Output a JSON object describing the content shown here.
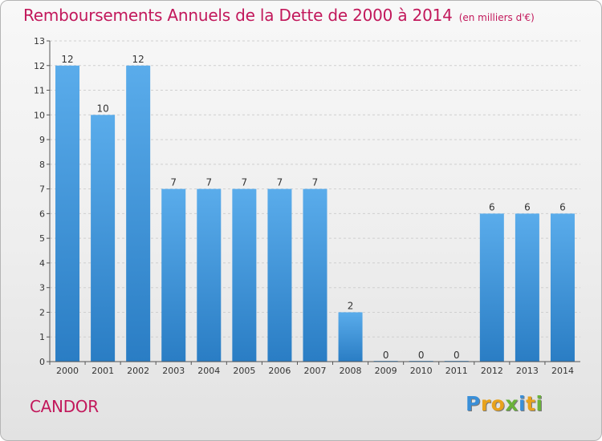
{
  "title": "Remboursements Annuels de la Dette de 2000 à 2014",
  "unit": "(en milliers d'€)",
  "commune": "CANDOR",
  "logo": {
    "text": "Proxiti",
    "letters": [
      {
        "char": "P",
        "color": "#3a8fd8"
      },
      {
        "char": "r",
        "color": "#e8a21c"
      },
      {
        "char": "o",
        "color": "#e8a21c"
      },
      {
        "char": "x",
        "color": "#6ab23a"
      },
      {
        "char": "i",
        "color": "#3a8fd8"
      },
      {
        "char": "t",
        "color": "#e8a21c"
      },
      {
        "char": "i",
        "color": "#6ab23a"
      }
    ]
  },
  "colors": {
    "title": "#c2185b",
    "bar_top": "#5aaceb",
    "bar_bottom": "#2a7dc4",
    "grid": "#cfcfcf",
    "axis": "#555555",
    "text": "#333333"
  },
  "chart_data": {
    "type": "bar",
    "categories": [
      "2000",
      "2001",
      "2002",
      "2003",
      "2004",
      "2005",
      "2006",
      "2007",
      "2008",
      "2009",
      "2010",
      "2011",
      "2012",
      "2013",
      "2014"
    ],
    "values": [
      12,
      10,
      12,
      7,
      7,
      7,
      7,
      7,
      2,
      0,
      0,
      0,
      6,
      6,
      6
    ],
    "data_labels": [
      "12",
      "10",
      "12",
      "7",
      "7",
      "7",
      "7",
      "7",
      "2",
      "0",
      "0",
      "0",
      "6",
      "6",
      "6"
    ],
    "yticks": [
      0,
      1,
      2,
      3,
      4,
      5,
      6,
      7,
      8,
      9,
      10,
      11,
      12,
      13
    ],
    "ylim": [
      0,
      13
    ],
    "grid": "horizontal dashed",
    "legend": "none"
  }
}
